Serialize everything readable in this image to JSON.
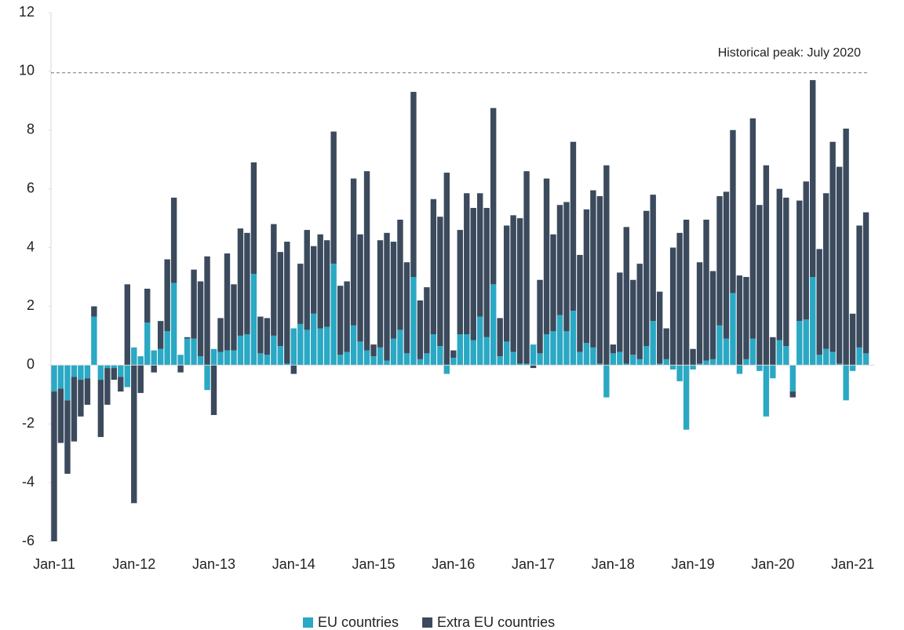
{
  "chart_data": {
    "type": "stacked_bar",
    "categories": [
      "Jan-11",
      null,
      null,
      null,
      null,
      null,
      null,
      null,
      null,
      null,
      null,
      null,
      "Jan-12",
      null,
      null,
      null,
      null,
      null,
      null,
      null,
      null,
      null,
      null,
      null,
      "Jan-13",
      null,
      null,
      null,
      null,
      null,
      null,
      null,
      null,
      null,
      null,
      null,
      "Jan-14",
      null,
      null,
      null,
      null,
      null,
      null,
      null,
      null,
      null,
      null,
      null,
      "Jan-15",
      null,
      null,
      null,
      null,
      null,
      null,
      null,
      null,
      null,
      null,
      null,
      "Jan-16",
      null,
      null,
      null,
      null,
      null,
      null,
      null,
      null,
      null,
      null,
      null,
      "Jan-17",
      null,
      null,
      null,
      null,
      null,
      null,
      null,
      null,
      null,
      null,
      null,
      "Jan-18",
      null,
      null,
      null,
      null,
      null,
      null,
      null,
      null,
      null,
      null,
      null,
      "Jan-19",
      null,
      null,
      null,
      null,
      null,
      null,
      null,
      null,
      null,
      null,
      null,
      "Jan-20",
      null,
      null,
      null,
      null,
      null,
      null,
      null,
      null,
      null,
      null,
      null,
      "Jan-21",
      null,
      null
    ],
    "series": [
      {
        "name": "EU countries",
        "color": "#2aa8c4",
        "values": [
          -0.9,
          -0.8,
          -1.2,
          -0.4,
          -0.5,
          -0.45,
          1.65,
          -0.5,
          -0.1,
          -0.1,
          -0.4,
          -0.75,
          0.6,
          0.3,
          1.45,
          0.5,
          0.55,
          1.15,
          2.8,
          0.35,
          0.9,
          0.9,
          0.3,
          -0.85,
          0.55,
          0.45,
          0.5,
          0.5,
          1.0,
          1.05,
          3.1,
          0.4,
          0.35,
          1.0,
          0.65,
          0.05,
          1.25,
          1.4,
          1.2,
          1.75,
          1.25,
          1.3,
          3.45,
          0.35,
          0.45,
          1.35,
          0.8,
          0.5,
          0.3,
          0.6,
          0.15,
          0.9,
          1.2,
          0.4,
          3.0,
          0.2,
          0.4,
          1.05,
          0.65,
          -0.3,
          0.25,
          1.05,
          1.05,
          0.85,
          1.65,
          0.95,
          2.75,
          0.3,
          0.8,
          0.45,
          0.05,
          0.05,
          0.7,
          0.4,
          1.05,
          1.15,
          1.7,
          1.15,
          1.85,
          0.45,
          0.75,
          0.6,
          0.05,
          -1.1,
          0.4,
          0.45,
          0.05,
          0.35,
          0.2,
          0.65,
          1.5,
          0.05,
          0.2,
          -0.15,
          -0.55,
          -2.2,
          -0.15,
          0.05,
          0.15,
          0.2,
          1.35,
          0.9,
          2.45,
          -0.3,
          0.2,
          0.9,
          -0.2,
          -1.75,
          -0.45,
          0.85,
          0.65,
          -0.9,
          1.5,
          1.55,
          3.0,
          0.35,
          0.55,
          0.45,
          0.05,
          -1.2,
          -0.2,
          0.6,
          0.4
        ]
      },
      {
        "name": "Extra EU countries",
        "color": "#3b4a5c",
        "values": [
          -5.1,
          -1.85,
          -2.5,
          -2.2,
          -1.25,
          -0.9,
          0.35,
          -1.95,
          -1.25,
          -0.4,
          -0.5,
          2.75,
          -4.7,
          -0.95,
          1.15,
          -0.25,
          0.95,
          2.45,
          2.9,
          -0.25,
          0.05,
          2.35,
          2.55,
          3.7,
          -1.7,
          1.15,
          3.3,
          2.25,
          3.65,
          3.45,
          3.8,
          1.25,
          1.25,
          3.8,
          3.2,
          4.15,
          -0.3,
          2.05,
          3.4,
          2.3,
          3.2,
          2.95,
          4.5,
          2.35,
          2.4,
          5.0,
          3.65,
          6.1,
          0.4,
          3.65,
          4.35,
          3.3,
          3.75,
          3.1,
          6.3,
          2.0,
          2.25,
          4.6,
          4.4,
          6.55,
          0.25,
          3.55,
          4.8,
          4.5,
          4.2,
          4.4,
          6.0,
          1.3,
          3.95,
          4.65,
          4.95,
          6.55,
          -0.1,
          2.5,
          5.3,
          3.3,
          3.75,
          4.4,
          5.75,
          3.3,
          4.55,
          5.35,
          5.7,
          6.8,
          0.3,
          2.7,
          4.65,
          2.55,
          3.25,
          4.6,
          4.3,
          2.45,
          1.05,
          4.0,
          4.5,
          4.95,
          0.55,
          3.45,
          4.8,
          3.0,
          4.4,
          5.0,
          5.55,
          3.05,
          2.8,
          7.5,
          5.45,
          6.8,
          0.95,
          5.15,
          5.05,
          -0.2,
          4.1,
          4.7,
          6.7,
          3.6,
          5.3,
          7.15,
          6.7,
          8.05,
          1.75,
          4.15,
          4.8
        ]
      }
    ],
    "ylim": [
      -6,
      12
    ],
    "yticks": [
      -6,
      -4,
      -2,
      0,
      2,
      4,
      6,
      8,
      10,
      12
    ],
    "annotation": {
      "text": "Historical peak: July 2020",
      "value": 9.95
    },
    "legend": "bottom"
  }
}
